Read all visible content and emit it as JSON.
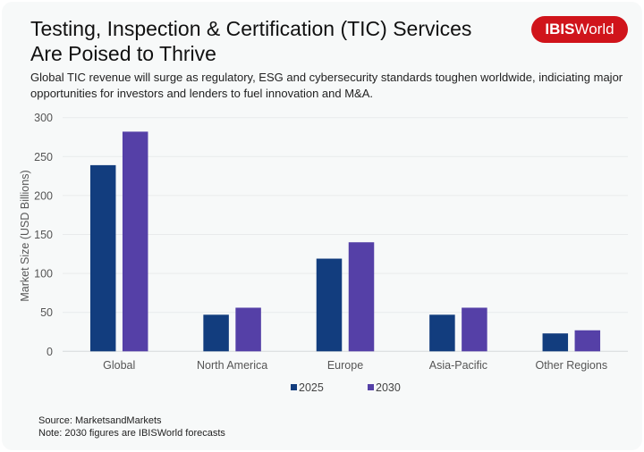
{
  "header": {
    "title_line1": "Testing, Inspection & Certification (TIC) Services",
    "title_line2": "Are Poised to Thrive",
    "subtitle_line1": "Global TIC revenue will surge as regulatory, ESG and cybersecurity standards toughen worldwide, indiciating major",
    "subtitle_line2": "opportunities for investors and lenders to fuel innovation and M&A.",
    "logo_bold": "IBIS",
    "logo_regular": "World"
  },
  "colors": {
    "series_2025": "#123d7e",
    "series_2030": "#5540a7",
    "logo_bg": "#d0141b"
  },
  "chart_data": {
    "type": "bar",
    "title": "",
    "xlabel": "",
    "ylabel": "Market Size (USD Billions)",
    "categories": [
      "Global",
      "North America",
      "Europe",
      "Asia-Pacific",
      "Other Regions"
    ],
    "series": [
      {
        "name": "2025",
        "values": [
          239,
          47,
          119,
          47,
          23
        ]
      },
      {
        "name": "2030",
        "values": [
          282,
          56,
          140,
          56,
          27
        ]
      }
    ],
    "ylim": [
      0,
      300
    ],
    "yticks": [
      0,
      50,
      100,
      150,
      200,
      250,
      300
    ],
    "grid": true,
    "legend_position": "bottom-center"
  },
  "footer": {
    "source": "Source: MarketsandMarkets",
    "note": "Note: 2030 figures are IBISWorld forecasts"
  }
}
